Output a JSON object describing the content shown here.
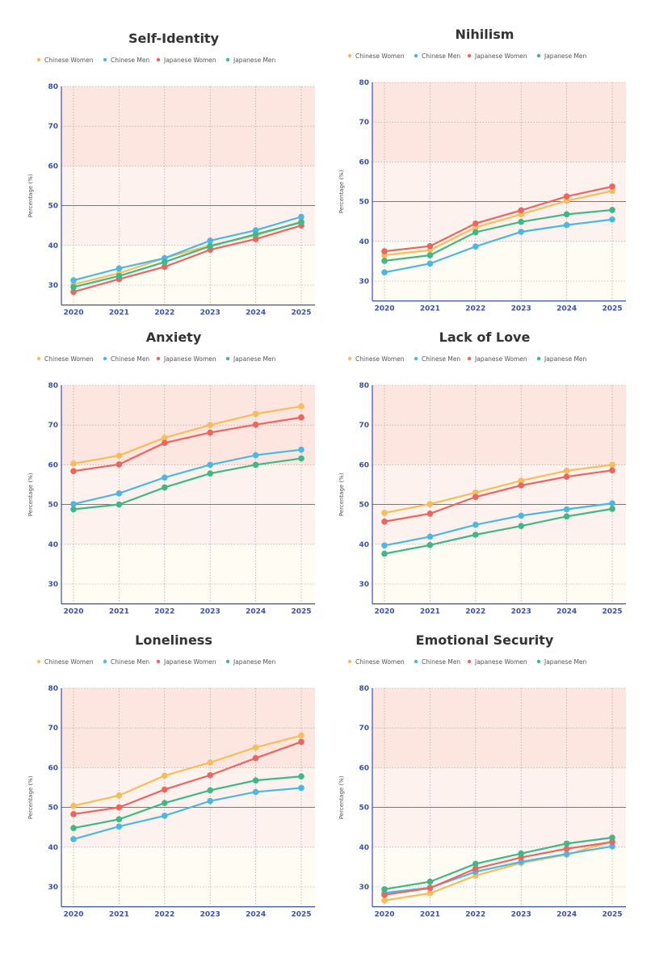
{
  "chart_data": [
    {
      "type": "line",
      "title": "Self-Identity",
      "ylabel": "Percentage (%)",
      "ylim": [
        25,
        80
      ],
      "yticks": [
        30,
        40,
        50,
        60,
        70,
        80
      ],
      "reference_line": 50,
      "grid": true,
      "legend": "top",
      "categories": [
        "2020",
        "2021",
        "2022",
        "2023",
        "2024",
        "2025"
      ],
      "series": [
        {
          "name": "Chinese Women",
          "values": [
            30.2,
            33.0,
            36.8,
            40.0,
            42.5,
            46.0
          ]
        },
        {
          "name": "Chinese Men",
          "values": [
            31.2,
            34.2,
            36.8,
            41.2,
            43.8,
            47.2
          ]
        },
        {
          "name": "Japanese Women",
          "values": [
            28.3,
            31.5,
            34.6,
            38.9,
            41.6,
            45.0
          ]
        },
        {
          "name": "Japanese Men",
          "values": [
            29.5,
            32.3,
            35.8,
            39.8,
            42.8,
            45.8
          ]
        }
      ]
    },
    {
      "type": "line",
      "title": "Nihilism",
      "ylabel": "Percentage (%)",
      "ylim": [
        25,
        80
      ],
      "yticks": [
        30,
        40,
        50,
        60,
        70,
        80
      ],
      "reference_line": 50,
      "grid": true,
      "legend": "top",
      "categories": [
        "2020",
        "2021",
        "2022",
        "2023",
        "2024",
        "2025"
      ],
      "series": [
        {
          "name": "Chinese Women",
          "values": [
            36.5,
            37.8,
            43.5,
            46.8,
            50.2,
            52.7
          ]
        },
        {
          "name": "Chinese Men",
          "values": [
            32.2,
            34.4,
            38.7,
            42.4,
            44.1,
            45.5
          ]
        },
        {
          "name": "Japanese Women",
          "values": [
            37.5,
            38.8,
            44.5,
            47.8,
            51.3,
            53.8
          ]
        },
        {
          "name": "Japanese Men",
          "values": [
            35.1,
            36.5,
            42.3,
            44.9,
            46.8,
            47.9
          ]
        }
      ]
    },
    {
      "type": "line",
      "title": "Anxiety",
      "ylabel": "Percentage (%)",
      "ylim": [
        25,
        80
      ],
      "yticks": [
        30,
        40,
        50,
        60,
        70,
        80
      ],
      "reference_line": 50,
      "grid": true,
      "legend": "top",
      "categories": [
        "2020",
        "2021",
        "2022",
        "2023",
        "2024",
        "2025"
      ],
      "series": [
        {
          "name": "Chinese Women",
          "values": [
            60.3,
            62.3,
            66.8,
            70.0,
            72.8,
            74.7
          ]
        },
        {
          "name": "Chinese Men",
          "values": [
            50.1,
            52.8,
            56.8,
            60.0,
            62.4,
            63.8
          ]
        },
        {
          "name": "Japanese Women",
          "values": [
            58.4,
            60.1,
            65.5,
            68.1,
            70.1,
            71.9
          ]
        },
        {
          "name": "Japanese Men",
          "values": [
            48.8,
            50.0,
            54.3,
            57.8,
            60.0,
            61.6
          ]
        }
      ]
    },
    {
      "type": "line",
      "title": "Lack of Love",
      "ylabel": "Percentage (%)",
      "ylim": [
        25,
        80
      ],
      "yticks": [
        30,
        40,
        50,
        60,
        70,
        80
      ],
      "reference_line": 50,
      "grid": true,
      "legend": "top",
      "categories": [
        "2020",
        "2021",
        "2022",
        "2023",
        "2024",
        "2025"
      ],
      "series": [
        {
          "name": "Chinese Women",
          "values": [
            47.9,
            50.1,
            53.0,
            56.0,
            58.5,
            60.0
          ]
        },
        {
          "name": "Chinese Men",
          "values": [
            39.7,
            41.9,
            44.9,
            47.2,
            48.8,
            50.3
          ]
        },
        {
          "name": "Japanese Women",
          "values": [
            45.7,
            47.7,
            51.9,
            54.8,
            57.0,
            58.6
          ]
        },
        {
          "name": "Japanese Men",
          "values": [
            37.6,
            39.8,
            42.4,
            44.6,
            47.0,
            48.9
          ]
        }
      ]
    },
    {
      "type": "line",
      "title": "Loneliness",
      "ylabel": "Percentage (%)",
      "ylim": [
        25,
        80
      ],
      "yticks": [
        30,
        40,
        50,
        60,
        70,
        80
      ],
      "reference_line": 50,
      "grid": true,
      "legend": "top",
      "categories": [
        "2020",
        "2021",
        "2022",
        "2023",
        "2024",
        "2025"
      ],
      "series": [
        {
          "name": "Chinese Women",
          "values": [
            50.4,
            53.0,
            58.0,
            61.3,
            65.1,
            68.1
          ]
        },
        {
          "name": "Chinese Men",
          "values": [
            42.0,
            45.2,
            47.9,
            51.6,
            53.9,
            54.9
          ]
        },
        {
          "name": "Japanese Women",
          "values": [
            48.3,
            50.0,
            54.5,
            58.1,
            62.4,
            66.5
          ]
        },
        {
          "name": "Japanese Men",
          "values": [
            44.8,
            47.0,
            51.1,
            54.3,
            56.8,
            57.8
          ]
        }
      ]
    },
    {
      "type": "line",
      "title": "Emotional Security",
      "ylabel": "Percentage (%)",
      "ylim": [
        25,
        80
      ],
      "yticks": [
        30,
        40,
        50,
        60,
        70,
        80
      ],
      "reference_line": 50,
      "grid": true,
      "legend": "top",
      "categories": [
        "2020",
        "2021",
        "2022",
        "2023",
        "2024",
        "2025"
      ],
      "series": [
        {
          "name": "Chinese Women",
          "values": [
            26.6,
            28.4,
            32.8,
            36.0,
            38.1,
            41.5
          ]
        },
        {
          "name": "Chinese Men",
          "values": [
            28.5,
            29.8,
            33.8,
            36.3,
            38.3,
            40.2
          ]
        },
        {
          "name": "Japanese Women",
          "values": [
            28.0,
            29.7,
            34.6,
            37.4,
            39.6,
            41.3
          ]
        },
        {
          "name": "Japanese Men",
          "values": [
            29.4,
            31.3,
            35.8,
            38.4,
            40.9,
            42.4
          ]
        }
      ]
    }
  ],
  "colors": {
    "Chinese Women": "#f7bd5a",
    "Chinese Men": "#4bb8e3",
    "Japanese Women": "#f0645f",
    "Japanese Men": "#3fb887",
    "axis": "#3a4fb0",
    "zone_high": "#fde6e0",
    "zone_mid": "#fdf2ed",
    "zone_low": "#fefcf3"
  }
}
